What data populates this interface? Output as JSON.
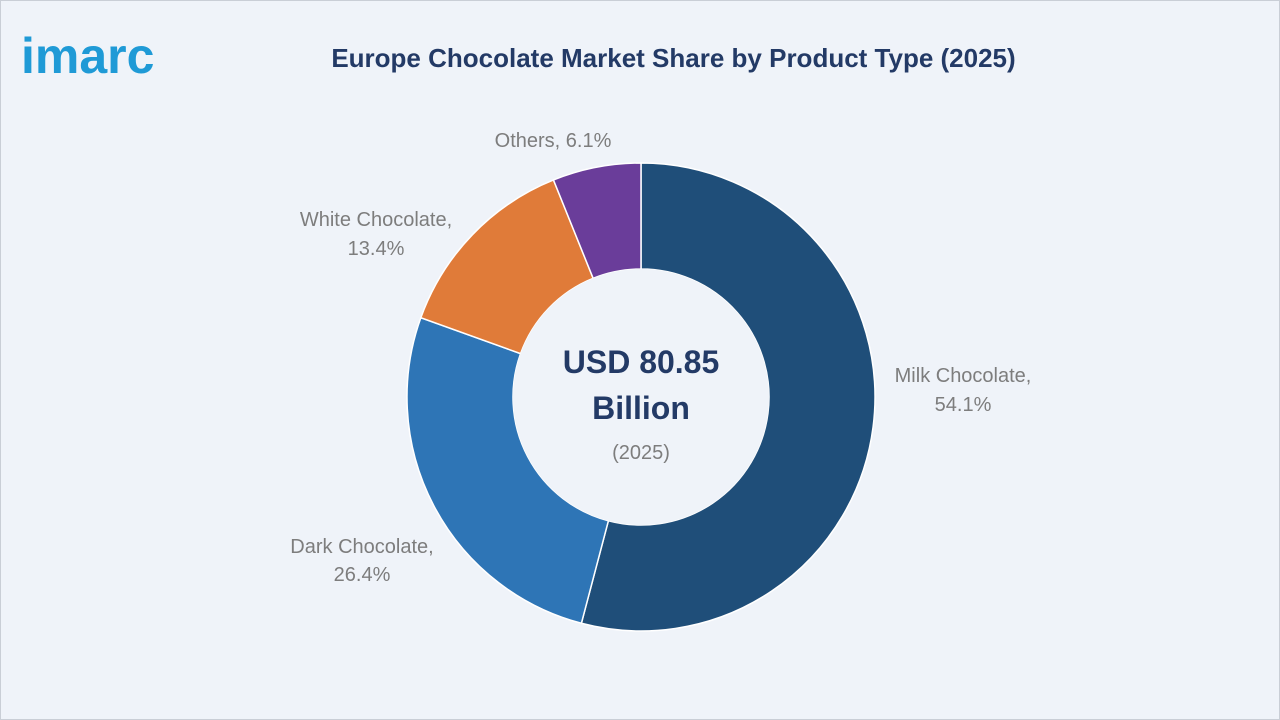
{
  "brand": {
    "logo_text": "imarc"
  },
  "chart_data": {
    "type": "pie",
    "title": "Europe Chocolate Market Share by Product Type (2025)",
    "donut": true,
    "center_label": {
      "value": "USD 80.85",
      "unit": "Billion",
      "year": "(2025)"
    },
    "slices": [
      {
        "label": "Milk Chocolate,",
        "pct_label": "54.1%",
        "value": 54.1,
        "color": "#1f4e79"
      },
      {
        "label": "Dark Chocolate,",
        "pct_label": "26.4%",
        "value": 26.4,
        "color": "#2e75b6"
      },
      {
        "label": "White Chocolate,",
        "pct_label": "13.4%",
        "value": 13.4,
        "color": "#e07b39"
      },
      {
        "label": "Others, 6.1%",
        "pct_label": "",
        "value": 6.1,
        "color": "#6a3d9a"
      }
    ],
    "colors": {
      "title": "#233a66",
      "label": "#7d7d7d",
      "background": "#eff3f9"
    }
  }
}
